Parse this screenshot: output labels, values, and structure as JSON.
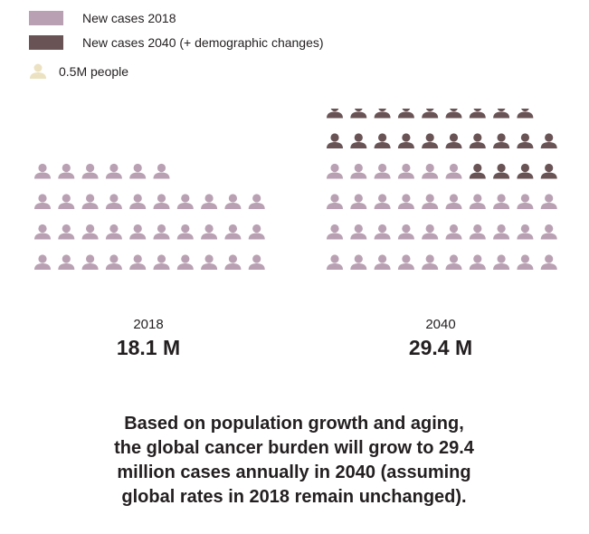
{
  "legend": {
    "items": [
      {
        "label": "New cases 2018",
        "color": "#b9a1b3"
      },
      {
        "label": "New cases 2040 (+ demographic changes)",
        "color": "#6a5355"
      }
    ],
    "unit_label": "0.5M people",
    "unit_icon": "person-icon",
    "unit_color": "#ece2c2"
  },
  "chart_data": [
    {
      "type": "pictogram",
      "unit_value_millions": 0.5,
      "year": "2018",
      "total_label": "18.1 M",
      "value_millions": 18.1,
      "series": [
        {
          "name": "New cases 2018",
          "icons": 36,
          "color": "#b9a1b3"
        }
      ]
    },
    {
      "type": "pictogram",
      "unit_value_millions": 0.5,
      "year": "2040",
      "total_label": "29.4 M",
      "value_millions": 29.4,
      "series": [
        {
          "name": "New cases 2018",
          "icons": 36,
          "color": "#b9a1b3"
        },
        {
          "name": "New cases 2040 (+ demographic changes)",
          "icons": 23,
          "color": "#6a5355"
        }
      ]
    }
  ],
  "caption": "Based on population growth and aging, the global cancer burden will grow to 29.4 million cases annually in 2040 (assuming global rates in 2018 remain unchanged)."
}
